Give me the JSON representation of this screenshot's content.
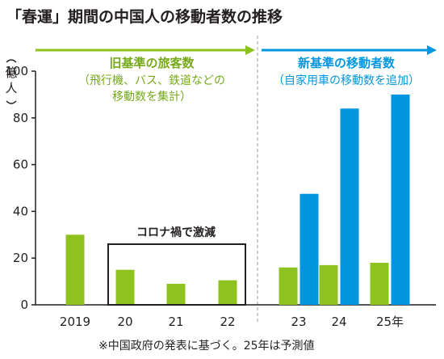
{
  "chart_data": {
    "type": "bar",
    "title": "「春運」期間の中国人の移動者数の推移",
    "ylabel": "（億人）",
    "ylim": [
      0,
      100
    ],
    "yticks": [
      0,
      20,
      40,
      60,
      80,
      100
    ],
    "categories": [
      "2019",
      "20",
      "21",
      "22",
      "23",
      "24",
      "25年"
    ],
    "series": [
      {
        "name": "旧基準の旅客数",
        "description_lines": [
          "（飛行機、バス、鉄道などの",
          "移動数を集計）"
        ],
        "color": "#8dc21f",
        "values": [
          30,
          15,
          9,
          10.5,
          16,
          17,
          18
        ]
      },
      {
        "name": "新基準の移動者数",
        "description_lines": [
          "（自家用車の移動数を追加）"
        ],
        "color": "#0096e0",
        "values": [
          null,
          null,
          null,
          null,
          47.5,
          84,
          90
        ]
      }
    ],
    "annotation": "コロナ禍で激減",
    "note": "※中国政府の発表に基づく。25年は予測値"
  }
}
